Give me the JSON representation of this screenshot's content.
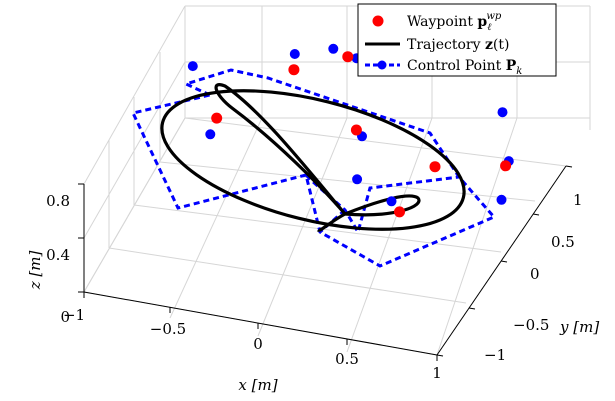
{
  "chart_data": {
    "type": "scatter3d",
    "xlabel": "x [m]",
    "ylabel": "y [m]",
    "zlabel": "z [m]",
    "x_ticks": [
      "−1",
      "−0.5",
      "0",
      "0.5",
      "1"
    ],
    "y_ticks": [
      "−1",
      "−0.5",
      "0",
      "0.5",
      "1"
    ],
    "z_ticks": [
      "0",
      "0.4",
      "0.8"
    ],
    "xlim": [
      -1,
      1
    ],
    "ylim": [
      -1,
      1
    ],
    "zlim": [
      0,
      0.8
    ],
    "grid": true,
    "legend_position": "top-right",
    "legend": [
      {
        "label_main": "Waypoint ",
        "label_sym": "p",
        "label_sub": "ℓ",
        "label_sup": "wp",
        "color": "#ff0000",
        "style": "marker"
      },
      {
        "label_main": "Trajectory ",
        "label_sym": "z",
        "label_arg": "(t)",
        "color": "#000000",
        "style": "line"
      },
      {
        "label_main": "Control Point ",
        "label_sym": "P",
        "label_sub": "k",
        "color": "#0000ff",
        "style": "dashed-marker"
      }
    ],
    "series": [
      {
        "name": "Waypoint",
        "color": "#ff0000",
        "points": [
          {
            "x": -0.45,
            "y": 0.75,
            "z": 0.55
          },
          {
            "x": -0.2,
            "y": 0.9,
            "z": 0.6
          },
          {
            "x": -0.65,
            "y": 0.1,
            "z": 0.6
          },
          {
            "x": 0.05,
            "y": 0.35,
            "z": 0.5
          },
          {
            "x": 0.55,
            "y": 0.2,
            "z": 0.45
          },
          {
            "x": 0.95,
            "y": 0.2,
            "z": 0.55
          },
          {
            "x": 0.55,
            "y": -0.35,
            "z": 0.5
          }
        ]
      },
      {
        "name": "Control Point",
        "color": "#0000ff",
        "points": [
          {
            "x": -0.95,
            "y": 0.55,
            "z": 0.6
          },
          {
            "x": -0.5,
            "y": 0.9,
            "z": 0.55
          },
          {
            "x": -0.3,
            "y": 0.95,
            "z": 0.6
          },
          {
            "x": -0.15,
            "y": 0.9,
            "z": 0.6
          },
          {
            "x": 0.75,
            "y": 0.7,
            "z": 0.55
          },
          {
            "x": 0.95,
            "y": 0.25,
            "z": 0.55
          },
          {
            "x": 1.0,
            "y": 0.0,
            "z": 0.45
          },
          {
            "x": 0.45,
            "y": -0.2,
            "z": 0.45
          },
          {
            "x": 0.2,
            "y": -0.05,
            "z": 0.45
          },
          {
            "x": 0.1,
            "y": 0.3,
            "z": 0.5
          },
          {
            "x": -0.65,
            "y": 0.0,
            "z": 0.55
          }
        ]
      }
    ]
  }
}
